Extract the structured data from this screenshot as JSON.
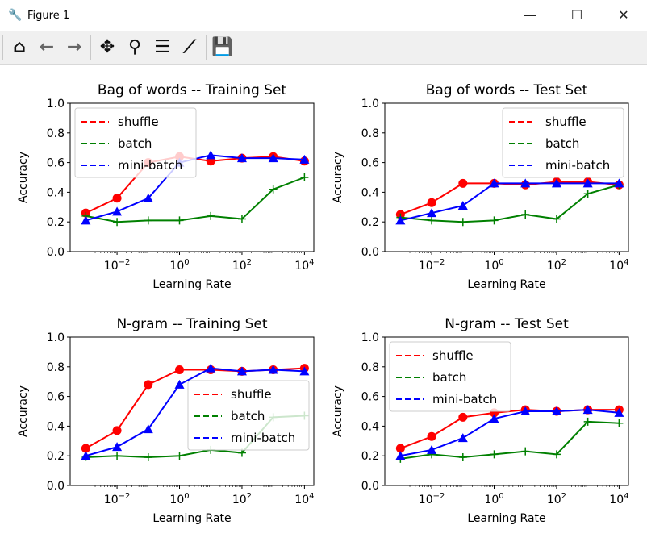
{
  "window": {
    "title": "Figure 1",
    "minimize": "—",
    "maximize": "☐",
    "close": "✕"
  },
  "toolbar": [
    {
      "name": "home-icon",
      "glyph": "⌂"
    },
    {
      "name": "back-icon",
      "glyph": "←"
    },
    {
      "name": "forward-icon",
      "glyph": "→"
    },
    {
      "name": "pan-icon",
      "glyph": "✥"
    },
    {
      "name": "zoom-icon",
      "glyph": "⚲"
    },
    {
      "name": "subplots-icon",
      "glyph": "☰"
    },
    {
      "name": "edit-lines-icon",
      "glyph": "⟋"
    },
    {
      "name": "save-icon",
      "glyph": "💾"
    }
  ],
  "colors": {
    "shuffle": "#ff0000",
    "batch": "#008000",
    "mini-batch": "#0000ff"
  },
  "chart_data": [
    {
      "type": "line",
      "title": "Bag of words -- Training Set",
      "xlabel": "Learning Rate",
      "ylabel": "Accuracy",
      "xscale": "log",
      "ylim": [
        0,
        1
      ],
      "yticks": [
        "0.0",
        "0.2",
        "0.4",
        "0.6",
        "0.8",
        "1.0"
      ],
      "xticks": [
        "10^-2",
        "10^0",
        "10^2",
        "10^4"
      ],
      "legend": "upper-left",
      "x": [
        0.001,
        0.01,
        0.1,
        1,
        10,
        100,
        1000,
        10000
      ],
      "series": [
        {
          "name": "shuffle",
          "marker": "o",
          "values": [
            0.26,
            0.36,
            0.6,
            0.64,
            0.61,
            0.63,
            0.64,
            0.61
          ]
        },
        {
          "name": "batch",
          "marker": "+",
          "values": [
            0.24,
            0.2,
            0.21,
            0.21,
            0.24,
            0.22,
            0.42,
            0.5
          ]
        },
        {
          "name": "mini-batch",
          "marker": "^",
          "values": [
            0.21,
            0.27,
            0.36,
            0.6,
            0.65,
            0.63,
            0.63,
            0.62
          ]
        }
      ]
    },
    {
      "type": "line",
      "title": "Bag of words -- Test Set",
      "xlabel": "Learning Rate",
      "ylabel": "Accuracy",
      "xscale": "log",
      "ylim": [
        0,
        1
      ],
      "yticks": [
        "0.0",
        "0.2",
        "0.4",
        "0.6",
        "0.8",
        "1.0"
      ],
      "xticks": [
        "10^-2",
        "10^0",
        "10^2",
        "10^4"
      ],
      "legend": "upper-right",
      "x": [
        0.001,
        0.01,
        0.1,
        1,
        10,
        100,
        1000,
        10000
      ],
      "series": [
        {
          "name": "shuffle",
          "marker": "o",
          "values": [
            0.25,
            0.33,
            0.46,
            0.46,
            0.45,
            0.47,
            0.47,
            0.45
          ]
        },
        {
          "name": "batch",
          "marker": "+",
          "values": [
            0.23,
            0.21,
            0.2,
            0.21,
            0.25,
            0.22,
            0.39,
            0.45
          ]
        },
        {
          "name": "mini-batch",
          "marker": "^",
          "values": [
            0.21,
            0.26,
            0.31,
            0.46,
            0.46,
            0.46,
            0.46,
            0.46
          ]
        }
      ]
    },
    {
      "type": "line",
      "title": "N-gram -- Training Set",
      "xlabel": "Learning Rate",
      "ylabel": "Accuracy",
      "xscale": "log",
      "ylim": [
        0,
        1
      ],
      "yticks": [
        "0.0",
        "0.2",
        "0.4",
        "0.6",
        "0.8",
        "1.0"
      ],
      "xticks": [
        "10^-2",
        "10^0",
        "10^2",
        "10^4"
      ],
      "legend": "center-right",
      "x": [
        0.001,
        0.01,
        0.1,
        1,
        10,
        100,
        1000,
        10000
      ],
      "series": [
        {
          "name": "shuffle",
          "marker": "o",
          "values": [
            0.25,
            0.37,
            0.68,
            0.78,
            0.78,
            0.77,
            0.78,
            0.79
          ]
        },
        {
          "name": "batch",
          "marker": "+",
          "values": [
            0.19,
            0.2,
            0.19,
            0.2,
            0.24,
            0.22,
            0.46,
            0.47
          ]
        },
        {
          "name": "mini-batch",
          "marker": "^",
          "values": [
            0.2,
            0.26,
            0.38,
            0.68,
            0.79,
            0.77,
            0.78,
            0.77
          ]
        }
      ]
    },
    {
      "type": "line",
      "title": "N-gram -- Test Set",
      "xlabel": "Learning Rate",
      "ylabel": "Accuracy",
      "xscale": "log",
      "ylim": [
        0,
        1
      ],
      "yticks": [
        "0.0",
        "0.2",
        "0.4",
        "0.6",
        "0.8",
        "1.0"
      ],
      "xticks": [
        "10^-2",
        "10^0",
        "10^2",
        "10^4"
      ],
      "legend": "upper-left",
      "x": [
        0.001,
        0.01,
        0.1,
        1,
        10,
        100,
        1000,
        10000
      ],
      "series": [
        {
          "name": "shuffle",
          "marker": "o",
          "values": [
            0.25,
            0.33,
            0.46,
            0.49,
            0.51,
            0.5,
            0.51,
            0.51
          ]
        },
        {
          "name": "batch",
          "marker": "+",
          "values": [
            0.18,
            0.21,
            0.19,
            0.21,
            0.23,
            0.21,
            0.43,
            0.42
          ]
        },
        {
          "name": "mini-batch",
          "marker": "^",
          "values": [
            0.2,
            0.24,
            0.32,
            0.45,
            0.5,
            0.5,
            0.51,
            0.49
          ]
        }
      ]
    }
  ]
}
